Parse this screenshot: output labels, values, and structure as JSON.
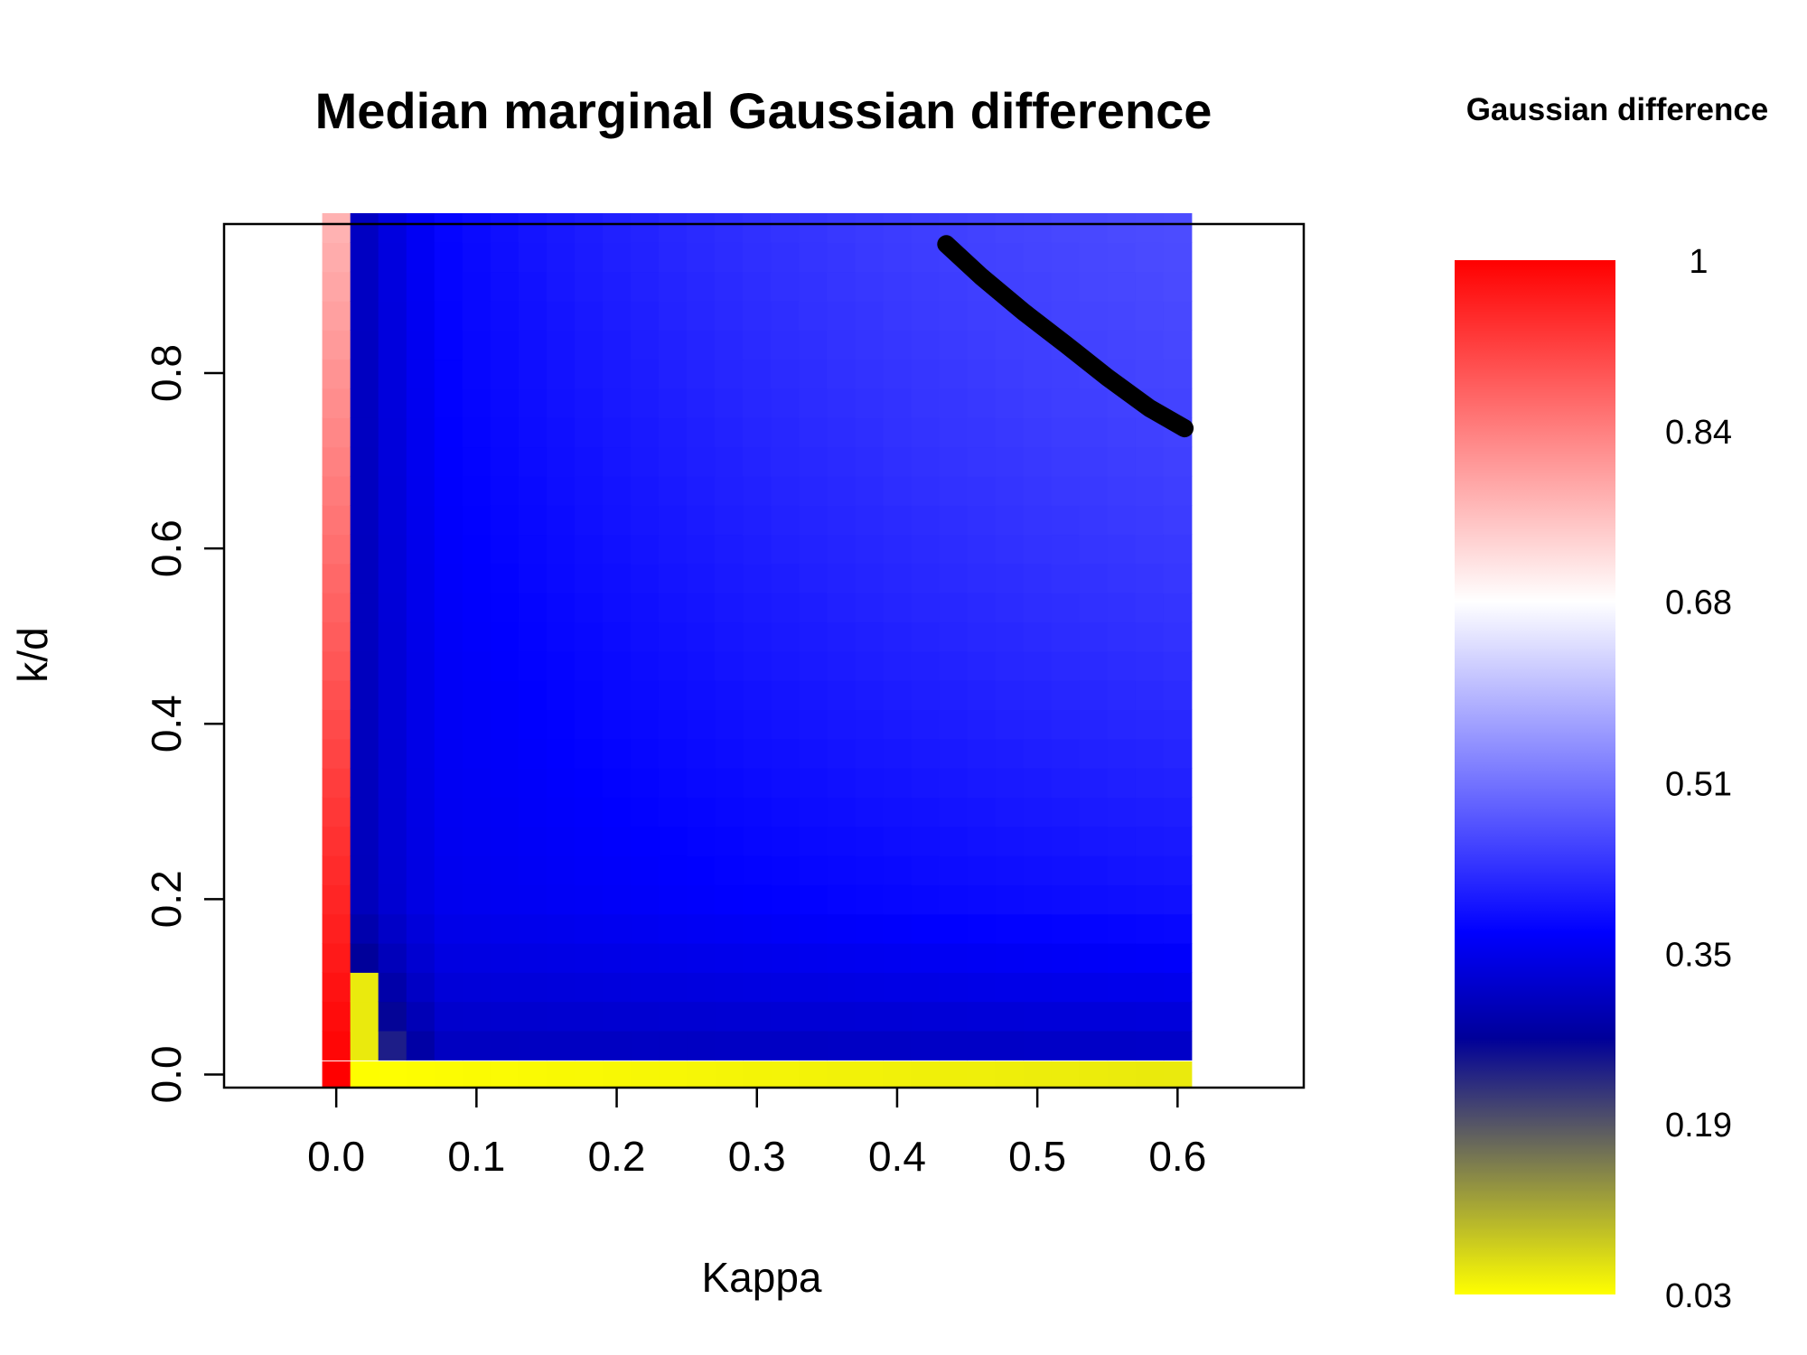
{
  "chart_data": {
    "type": "heatmap",
    "title": "Median marginal Gaussian difference",
    "xlabel": "Kappa",
    "ylabel": "k/d",
    "xlim": [
      -0.08,
      0.69
    ],
    "ylim": [
      -0.015,
      0.97
    ],
    "x_ticks": [
      "0.0",
      "0.1",
      "0.2",
      "0.3",
      "0.4",
      "0.5",
      "0.6"
    ],
    "x_tick_values": [
      0.0,
      0.1,
      0.2,
      0.3,
      0.4,
      0.5,
      0.6
    ],
    "y_ticks": [
      "0.0",
      "0.2",
      "0.4",
      "0.6",
      "0.8"
    ],
    "y_tick_values": [
      0.0,
      0.2,
      0.4,
      0.6,
      0.8
    ],
    "x_cells": {
      "start": 0.0,
      "step": 0.02,
      "count": 31
    },
    "y_cells": {
      "start": 0.0,
      "step": 0.0333,
      "count": 30
    },
    "color_scale": {
      "title": "Gaussian difference",
      "min": 0.03,
      "max": 1.0,
      "stops": [
        {
          "value": 0.03,
          "color": "#ffff00"
        },
        {
          "value": 0.27,
          "color": "#000099"
        },
        {
          "value": 0.37,
          "color": "#0000ff"
        },
        {
          "value": 0.68,
          "color": "#ffffff"
        },
        {
          "value": 1.0,
          "color": "#ff0000"
        }
      ],
      "tick_labels": [
        "1",
        "0.84",
        "0.68",
        "0.51",
        "0.35",
        "0.19",
        "0.03"
      ],
      "tick_values": [
        1.0,
        0.84,
        0.68,
        0.51,
        0.35,
        0.19,
        0.03
      ]
    },
    "curve": {
      "color": "#000000",
      "points": [
        [
          0.435,
          0.947
        ],
        [
          0.46,
          0.91
        ],
        [
          0.49,
          0.87
        ],
        [
          0.52,
          0.833
        ],
        [
          0.55,
          0.795
        ],
        [
          0.58,
          0.76
        ],
        [
          0.605,
          0.737
        ]
      ]
    },
    "grid": false
  }
}
